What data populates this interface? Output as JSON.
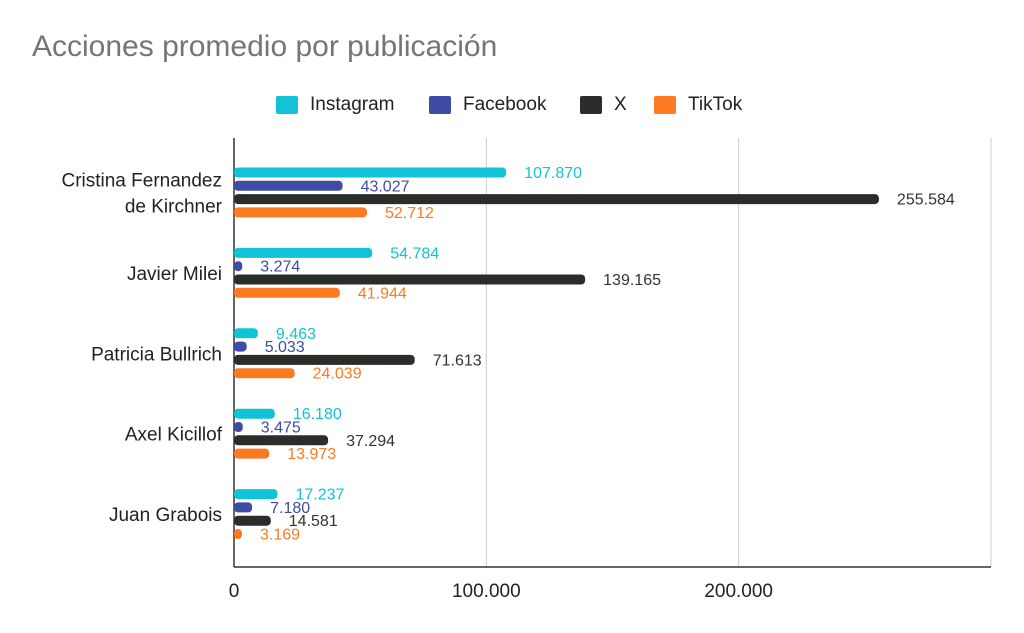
{
  "chart_data": {
    "type": "bar",
    "orientation": "horizontal",
    "title": "Acciones promedio por publicación",
    "xlabel": "",
    "ylabel": "",
    "categories": [
      [
        "Cristina Fernandez",
        "de Kirchner"
      ],
      [
        "Javier Milei"
      ],
      [
        "Patricia Bullrich"
      ],
      [
        "Axel Kicillof"
      ],
      [
        "Juan Grabois"
      ]
    ],
    "series": [
      {
        "name": "Instagram",
        "color": "#12c2d6",
        "values": [
          107870,
          54784,
          9463,
          16180,
          17237
        ],
        "labels": [
          "107.870",
          "54.784",
          "9.463",
          "16.180",
          "17.237"
        ]
      },
      {
        "name": "Facebook",
        "color": "#3f4ba6",
        "values": [
          43027,
          3274,
          5033,
          3475,
          7180
        ],
        "labels": [
          "43.027",
          "3.274",
          "5.033",
          "3.475",
          "7.180"
        ]
      },
      {
        "name": "X",
        "color": "#2b2d2a",
        "values": [
          255584,
          139165,
          71613,
          37294,
          14581
        ],
        "labels": [
          "255.584",
          "139.165",
          "71.613",
          "37.294",
          "14.581"
        ]
      },
      {
        "name": "TikTok",
        "color": "#fb7a22",
        "values": [
          52712,
          41944,
          24039,
          13973,
          3169
        ],
        "labels": [
          "52.712",
          "41.944",
          "24.039",
          "13.973",
          "3.169"
        ]
      }
    ],
    "xlim": [
      0,
      300000
    ],
    "xticks": [
      0,
      100000,
      200000
    ],
    "xtick_labels": [
      "0",
      "100.000",
      "200.000"
    ],
    "grid": true,
    "legend_position": "top"
  }
}
